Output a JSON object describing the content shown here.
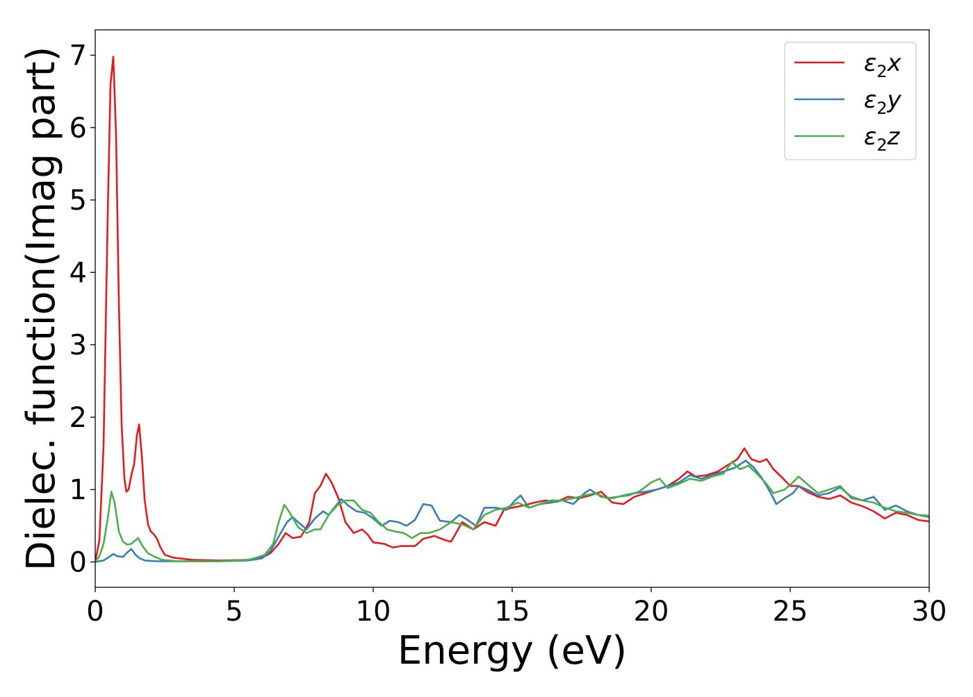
{
  "chart_data": {
    "type": "line",
    "title": "",
    "xlabel": "Energy (eV)",
    "ylabel": "Dielec. function(Imag part)",
    "xlim": [
      0,
      30
    ],
    "ylim": [
      -0.35,
      7.35
    ],
    "xticks": [
      0,
      5,
      10,
      15,
      20,
      25,
      30
    ],
    "xtick_labels": [
      "0",
      "5",
      "10",
      "15",
      "20",
      "25",
      "30"
    ],
    "yticks": [
      0,
      1,
      2,
      3,
      4,
      5,
      6,
      7
    ],
    "ytick_labels": [
      "0",
      "1",
      "2",
      "3",
      "4",
      "5",
      "6",
      "7"
    ],
    "grid": false,
    "legend_position": "top-right",
    "series": [
      {
        "name": "ε2x",
        "legend_main": "ε",
        "legend_sub": "2",
        "legend_tail": "x",
        "color": "#e41a1c",
        "points": [
          [
            0,
            0
          ],
          [
            0.15,
            0.3
          ],
          [
            0.3,
            1.6
          ],
          [
            0.45,
            4.8
          ],
          [
            0.55,
            6.6
          ],
          [
            0.65,
            6.98
          ],
          [
            0.75,
            5.9
          ],
          [
            0.85,
            3.6
          ],
          [
            0.95,
            1.9
          ],
          [
            1.05,
            1.15
          ],
          [
            1.12,
            0.97
          ],
          [
            1.2,
            1.0
          ],
          [
            1.3,
            1.2
          ],
          [
            1.4,
            1.35
          ],
          [
            1.5,
            1.75
          ],
          [
            1.58,
            1.9
          ],
          [
            1.68,
            1.45
          ],
          [
            1.78,
            0.85
          ],
          [
            1.9,
            0.52
          ],
          [
            2.0,
            0.42
          ],
          [
            2.12,
            0.38
          ],
          [
            2.22,
            0.32
          ],
          [
            2.35,
            0.2
          ],
          [
            2.5,
            0.1
          ],
          [
            2.8,
            0.06
          ],
          [
            3.5,
            0.03
          ],
          [
            4.5,
            0.02
          ],
          [
            5.5,
            0.03
          ],
          [
            6.0,
            0.06
          ],
          [
            6.3,
            0.12
          ],
          [
            6.6,
            0.25
          ],
          [
            6.85,
            0.4
          ],
          [
            7.1,
            0.33
          ],
          [
            7.4,
            0.35
          ],
          [
            7.7,
            0.55
          ],
          [
            7.9,
            0.95
          ],
          [
            8.1,
            1.05
          ],
          [
            8.3,
            1.22
          ],
          [
            8.5,
            1.1
          ],
          [
            8.75,
            0.88
          ],
          [
            9.0,
            0.55
          ],
          [
            9.3,
            0.4
          ],
          [
            9.6,
            0.45
          ],
          [
            9.8,
            0.38
          ],
          [
            10.0,
            0.27
          ],
          [
            10.4,
            0.25
          ],
          [
            10.7,
            0.2
          ],
          [
            11.0,
            0.22
          ],
          [
            11.5,
            0.22
          ],
          [
            11.8,
            0.32
          ],
          [
            12.2,
            0.36
          ],
          [
            12.6,
            0.3
          ],
          [
            12.8,
            0.28
          ],
          [
            13.2,
            0.55
          ],
          [
            13.6,
            0.45
          ],
          [
            14.0,
            0.55
          ],
          [
            14.4,
            0.5
          ],
          [
            14.7,
            0.72
          ],
          [
            15.0,
            0.75
          ],
          [
            15.4,
            0.78
          ],
          [
            15.8,
            0.82
          ],
          [
            16.2,
            0.85
          ],
          [
            16.6,
            0.83
          ],
          [
            17.0,
            0.9
          ],
          [
            17.4,
            0.88
          ],
          [
            17.8,
            0.92
          ],
          [
            18.2,
            0.97
          ],
          [
            18.6,
            0.82
          ],
          [
            19.0,
            0.8
          ],
          [
            19.4,
            0.9
          ],
          [
            19.8,
            0.95
          ],
          [
            20.2,
            1.0
          ],
          [
            20.6,
            1.05
          ],
          [
            21.0,
            1.15
          ],
          [
            21.3,
            1.25
          ],
          [
            21.6,
            1.18
          ],
          [
            22.0,
            1.2
          ],
          [
            22.4,
            1.25
          ],
          [
            22.8,
            1.35
          ],
          [
            23.1,
            1.42
          ],
          [
            23.35,
            1.57
          ],
          [
            23.6,
            1.42
          ],
          [
            23.9,
            1.38
          ],
          [
            24.15,
            1.42
          ],
          [
            24.4,
            1.28
          ],
          [
            24.7,
            1.17
          ],
          [
            25.0,
            1.05
          ],
          [
            25.3,
            1.05
          ],
          [
            25.6,
            0.97
          ],
          [
            26.0,
            0.9
          ],
          [
            26.4,
            0.87
          ],
          [
            26.8,
            0.92
          ],
          [
            27.2,
            0.82
          ],
          [
            27.6,
            0.77
          ],
          [
            28.0,
            0.7
          ],
          [
            28.4,
            0.6
          ],
          [
            28.8,
            0.68
          ],
          [
            29.2,
            0.65
          ],
          [
            29.6,
            0.58
          ],
          [
            30.0,
            0.56
          ]
        ]
      },
      {
        "name": "ε2y",
        "legend_main": "ε",
        "legend_sub": "2",
        "legend_tail": "y",
        "color": "#377eb8",
        "points": [
          [
            0,
            0
          ],
          [
            0.3,
            0.02
          ],
          [
            0.5,
            0.07
          ],
          [
            0.65,
            0.11
          ],
          [
            0.8,
            0.08
          ],
          [
            1.0,
            0.07
          ],
          [
            1.15,
            0.13
          ],
          [
            1.3,
            0.18
          ],
          [
            1.45,
            0.1
          ],
          [
            1.6,
            0.05
          ],
          [
            1.8,
            0.02
          ],
          [
            2.2,
            0.01
          ],
          [
            3.0,
            0.01
          ],
          [
            4.5,
            0.01
          ],
          [
            5.5,
            0.02
          ],
          [
            6.0,
            0.05
          ],
          [
            6.3,
            0.15
          ],
          [
            6.6,
            0.35
          ],
          [
            6.9,
            0.55
          ],
          [
            7.1,
            0.62
          ],
          [
            7.3,
            0.55
          ],
          [
            7.6,
            0.45
          ],
          [
            7.9,
            0.6
          ],
          [
            8.2,
            0.7
          ],
          [
            8.4,
            0.65
          ],
          [
            8.6,
            0.75
          ],
          [
            8.85,
            0.87
          ],
          [
            9.1,
            0.78
          ],
          [
            9.4,
            0.7
          ],
          [
            9.7,
            0.68
          ],
          [
            10.0,
            0.6
          ],
          [
            10.3,
            0.5
          ],
          [
            10.6,
            0.57
          ],
          [
            10.9,
            0.55
          ],
          [
            11.2,
            0.5
          ],
          [
            11.5,
            0.58
          ],
          [
            11.8,
            0.8
          ],
          [
            12.1,
            0.78
          ],
          [
            12.4,
            0.57
          ],
          [
            12.8,
            0.55
          ],
          [
            13.1,
            0.65
          ],
          [
            13.4,
            0.58
          ],
          [
            13.7,
            0.5
          ],
          [
            14.0,
            0.75
          ],
          [
            14.4,
            0.75
          ],
          [
            14.8,
            0.72
          ],
          [
            15.1,
            0.85
          ],
          [
            15.3,
            0.92
          ],
          [
            15.6,
            0.75
          ],
          [
            16.0,
            0.8
          ],
          [
            16.4,
            0.82
          ],
          [
            16.8,
            0.85
          ],
          [
            17.2,
            0.8
          ],
          [
            17.6,
            0.95
          ],
          [
            17.8,
            1.0
          ],
          [
            18.2,
            0.9
          ],
          [
            18.6,
            0.88
          ],
          [
            19.0,
            0.92
          ],
          [
            19.4,
            0.95
          ],
          [
            19.8,
            0.97
          ],
          [
            20.2,
            1.0
          ],
          [
            20.6,
            1.05
          ],
          [
            21.0,
            1.1
          ],
          [
            21.4,
            1.2
          ],
          [
            21.8,
            1.15
          ],
          [
            22.2,
            1.2
          ],
          [
            22.6,
            1.25
          ],
          [
            23.0,
            1.3
          ],
          [
            23.4,
            1.4
          ],
          [
            23.7,
            1.3
          ],
          [
            24.0,
            1.15
          ],
          [
            24.3,
            0.95
          ],
          [
            24.5,
            0.8
          ],
          [
            24.8,
            0.88
          ],
          [
            25.1,
            0.95
          ],
          [
            25.3,
            1.05
          ],
          [
            25.6,
            1.0
          ],
          [
            26.0,
            0.92
          ],
          [
            26.4,
            0.95
          ],
          [
            26.8,
            1.03
          ],
          [
            27.2,
            0.9
          ],
          [
            27.6,
            0.85
          ],
          [
            28.0,
            0.9
          ],
          [
            28.4,
            0.72
          ],
          [
            28.8,
            0.78
          ],
          [
            29.2,
            0.7
          ],
          [
            29.6,
            0.65
          ],
          [
            30.0,
            0.62
          ]
        ]
      },
      {
        "name": "ε2z",
        "legend_main": "ε",
        "legend_sub": "2",
        "legend_tail": "z",
        "color": "#4daf4a",
        "points": [
          [
            0,
            0
          ],
          [
            0.15,
            0.08
          ],
          [
            0.3,
            0.25
          ],
          [
            0.45,
            0.6
          ],
          [
            0.58,
            0.97
          ],
          [
            0.7,
            0.82
          ],
          [
            0.85,
            0.42
          ],
          [
            1.0,
            0.28
          ],
          [
            1.15,
            0.24
          ],
          [
            1.3,
            0.25
          ],
          [
            1.45,
            0.3
          ],
          [
            1.55,
            0.33
          ],
          [
            1.7,
            0.22
          ],
          [
            1.9,
            0.12
          ],
          [
            2.1,
            0.08
          ],
          [
            2.4,
            0.03
          ],
          [
            3.0,
            0.01
          ],
          [
            4.5,
            0.01
          ],
          [
            5.5,
            0.03
          ],
          [
            5.8,
            0.06
          ],
          [
            6.1,
            0.1
          ],
          [
            6.4,
            0.25
          ],
          [
            6.6,
            0.55
          ],
          [
            6.8,
            0.79
          ],
          [
            7.0,
            0.68
          ],
          [
            7.3,
            0.48
          ],
          [
            7.6,
            0.4
          ],
          [
            7.9,
            0.45
          ],
          [
            8.1,
            0.45
          ],
          [
            8.4,
            0.65
          ],
          [
            8.7,
            0.78
          ],
          [
            9.0,
            0.85
          ],
          [
            9.3,
            0.85
          ],
          [
            9.6,
            0.72
          ],
          [
            9.9,
            0.68
          ],
          [
            10.2,
            0.55
          ],
          [
            10.5,
            0.45
          ],
          [
            10.8,
            0.42
          ],
          [
            11.1,
            0.4
          ],
          [
            11.4,
            0.33
          ],
          [
            11.7,
            0.4
          ],
          [
            12.0,
            0.4
          ],
          [
            12.4,
            0.45
          ],
          [
            12.8,
            0.55
          ],
          [
            13.2,
            0.52
          ],
          [
            13.6,
            0.45
          ],
          [
            14.0,
            0.65
          ],
          [
            14.4,
            0.72
          ],
          [
            14.8,
            0.75
          ],
          [
            15.2,
            0.82
          ],
          [
            15.6,
            0.75
          ],
          [
            16.0,
            0.8
          ],
          [
            16.4,
            0.85
          ],
          [
            16.8,
            0.85
          ],
          [
            17.2,
            0.88
          ],
          [
            17.6,
            0.92
          ],
          [
            18.0,
            0.95
          ],
          [
            18.4,
            0.88
          ],
          [
            18.8,
            0.9
          ],
          [
            19.2,
            0.92
          ],
          [
            19.6,
            0.98
          ],
          [
            20.0,
            1.1
          ],
          [
            20.3,
            1.15
          ],
          [
            20.6,
            1.02
          ],
          [
            21.0,
            1.08
          ],
          [
            21.4,
            1.15
          ],
          [
            21.8,
            1.12
          ],
          [
            22.2,
            1.18
          ],
          [
            22.6,
            1.22
          ],
          [
            22.9,
            1.38
          ],
          [
            23.2,
            1.28
          ],
          [
            23.5,
            1.33
          ],
          [
            23.8,
            1.22
          ],
          [
            24.1,
            1.1
          ],
          [
            24.4,
            0.95
          ],
          [
            24.8,
            1.0
          ],
          [
            25.1,
            1.1
          ],
          [
            25.3,
            1.18
          ],
          [
            25.6,
            1.08
          ],
          [
            26.0,
            0.95
          ],
          [
            26.4,
            1.0
          ],
          [
            26.8,
            1.05
          ],
          [
            27.2,
            0.88
          ],
          [
            27.6,
            0.85
          ],
          [
            28.0,
            0.82
          ],
          [
            28.4,
            0.75
          ],
          [
            28.8,
            0.7
          ],
          [
            29.2,
            0.68
          ],
          [
            29.6,
            0.65
          ],
          [
            30.0,
            0.64
          ]
        ]
      }
    ]
  }
}
